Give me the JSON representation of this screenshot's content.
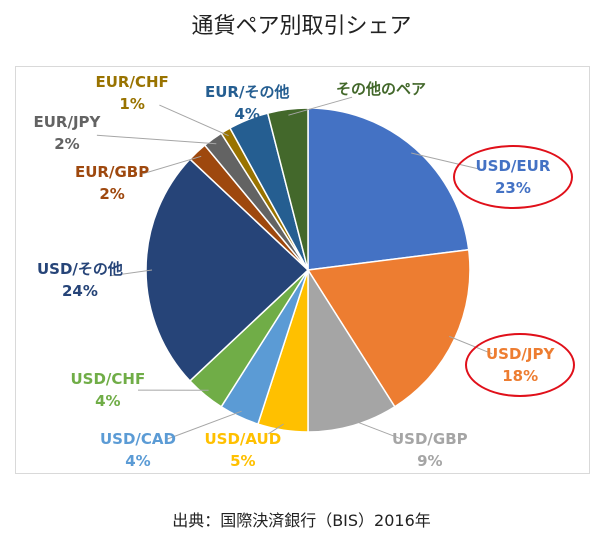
{
  "title": "通貨ペア別取引シェア",
  "source": "出典：国際決済銀行（BIS）2016年",
  "chart_data": {
    "type": "pie",
    "title": "通貨ペア別取引シェア",
    "legend": "none",
    "slices": [
      {
        "label": "USD/EUR",
        "value": 23,
        "value_label": "23%",
        "color": "#4472c4",
        "highlighted": true
      },
      {
        "label": "USD/JPY",
        "value": 18,
        "value_label": "18%",
        "color": "#ed7d31",
        "highlighted": true
      },
      {
        "label": "USD/GBP",
        "value": 9,
        "value_label": "9%",
        "color": "#a5a5a5",
        "highlighted": false
      },
      {
        "label": "USD/AUD",
        "value": 5,
        "value_label": "5%",
        "color": "#ffc000",
        "highlighted": false
      },
      {
        "label": "USD/CAD",
        "value": 4,
        "value_label": "4%",
        "color": "#5b9bd5",
        "highlighted": false
      },
      {
        "label": "USD/CHF",
        "value": 4,
        "value_label": "4%",
        "color": "#70ad47",
        "highlighted": false
      },
      {
        "label": "USD/その他",
        "value": 24,
        "value_label": "24%",
        "color": "#264478",
        "highlighted": false
      },
      {
        "label": "EUR/GBP",
        "value": 2,
        "value_label": "2%",
        "color": "#9e480e",
        "highlighted": false
      },
      {
        "label": "EUR/JPY",
        "value": 2,
        "value_label": "2%",
        "color": "#636363",
        "highlighted": false
      },
      {
        "label": "EUR/CHF",
        "value": 1,
        "value_label": "1%",
        "color": "#997300",
        "highlighted": false
      },
      {
        "label": "EUR/その他",
        "value": 4,
        "value_label": "4%",
        "color": "#255e91",
        "highlighted": false
      },
      {
        "label": "その他のペア",
        "value": 4,
        "value_label": "",
        "color": "#43682b",
        "highlighted": false
      }
    ]
  }
}
